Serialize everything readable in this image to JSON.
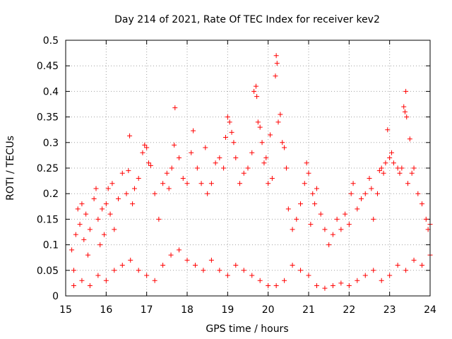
{
  "chart_data": {
    "type": "scatter",
    "title": "Day 214 of 2021, Rate Of TEC Index for receiver kev2",
    "xlabel": "GPS time / hours",
    "ylabel": "ROTI / TECUs",
    "xlim": [
      15,
      24
    ],
    "ylim": [
      0,
      0.5
    ],
    "xticks": [
      "15",
      "16",
      "17",
      "18",
      "19",
      "20",
      "21",
      "22",
      "23",
      "24"
    ],
    "yticks": [
      "0",
      "0.05",
      "0.1",
      "0.15",
      "0.2",
      "0.25",
      "0.3",
      "0.35",
      "0.4",
      "0.45",
      "0.5"
    ],
    "grid": true,
    "marker": "+",
    "marker_color": "#ff0000",
    "series": [
      {
        "name": "ROTI",
        "points": [
          [
            15.15,
            0.09
          ],
          [
            15.2,
            0.05
          ],
          [
            15.25,
            0.12
          ],
          [
            15.3,
            0.17
          ],
          [
            15.35,
            0.14
          ],
          [
            15.4,
            0.18
          ],
          [
            15.45,
            0.11
          ],
          [
            15.5,
            0.16
          ],
          [
            15.55,
            0.08
          ],
          [
            15.6,
            0.13
          ],
          [
            15.7,
            0.19
          ],
          [
            15.75,
            0.21
          ],
          [
            15.8,
            0.15
          ],
          [
            15.85,
            0.1
          ],
          [
            15.9,
            0.17
          ],
          [
            15.95,
            0.12
          ],
          [
            16.0,
            0.18
          ],
          [
            16.05,
            0.21
          ],
          [
            16.1,
            0.16
          ],
          [
            16.15,
            0.22
          ],
          [
            16.2,
            0.13
          ],
          [
            16.3,
            0.19
          ],
          [
            16.4,
            0.24
          ],
          [
            16.5,
            0.2
          ],
          [
            16.55,
            0.245
          ],
          [
            16.58,
            0.313
          ],
          [
            16.65,
            0.18
          ],
          [
            16.7,
            0.21
          ],
          [
            16.8,
            0.23
          ],
          [
            16.9,
            0.28
          ],
          [
            16.95,
            0.295
          ],
          [
            17.0,
            0.29
          ],
          [
            17.05,
            0.26
          ],
          [
            17.1,
            0.255
          ],
          [
            17.2,
            0.2
          ],
          [
            17.3,
            0.15
          ],
          [
            17.4,
            0.22
          ],
          [
            17.5,
            0.24
          ],
          [
            17.55,
            0.21
          ],
          [
            17.62,
            0.25
          ],
          [
            17.68,
            0.295
          ],
          [
            17.7,
            0.368
          ],
          [
            17.8,
            0.27
          ],
          [
            17.9,
            0.23
          ],
          [
            18.0,
            0.22
          ],
          [
            18.1,
            0.28
          ],
          [
            18.15,
            0.323
          ],
          [
            18.25,
            0.25
          ],
          [
            18.35,
            0.22
          ],
          [
            18.45,
            0.29
          ],
          [
            18.5,
            0.2
          ],
          [
            18.6,
            0.22
          ],
          [
            18.7,
            0.26
          ],
          [
            18.8,
            0.27
          ],
          [
            18.9,
            0.25
          ],
          [
            18.95,
            0.31
          ],
          [
            19.0,
            0.35
          ],
          [
            19.05,
            0.34
          ],
          [
            19.1,
            0.32
          ],
          [
            19.15,
            0.3
          ],
          [
            19.2,
            0.27
          ],
          [
            19.3,
            0.22
          ],
          [
            19.4,
            0.24
          ],
          [
            19.5,
            0.25
          ],
          [
            19.6,
            0.28
          ],
          [
            19.65,
            0.4
          ],
          [
            19.7,
            0.41
          ],
          [
            19.72,
            0.39
          ],
          [
            19.75,
            0.34
          ],
          [
            19.8,
            0.33
          ],
          [
            19.85,
            0.3
          ],
          [
            19.9,
            0.26
          ],
          [
            19.95,
            0.27
          ],
          [
            20.0,
            0.22
          ],
          [
            20.05,
            0.315
          ],
          [
            20.1,
            0.23
          ],
          [
            20.18,
            0.43
          ],
          [
            20.2,
            0.47
          ],
          [
            20.22,
            0.455
          ],
          [
            20.25,
            0.34
          ],
          [
            20.3,
            0.355
          ],
          [
            20.35,
            0.3
          ],
          [
            20.4,
            0.29
          ],
          [
            20.45,
            0.25
          ],
          [
            20.5,
            0.17
          ],
          [
            20.6,
            0.13
          ],
          [
            20.7,
            0.15
          ],
          [
            20.8,
            0.18
          ],
          [
            20.9,
            0.22
          ],
          [
            20.95,
            0.26
          ],
          [
            21.0,
            0.24
          ],
          [
            21.05,
            0.14
          ],
          [
            21.1,
            0.2
          ],
          [
            21.15,
            0.18
          ],
          [
            21.2,
            0.21
          ],
          [
            21.3,
            0.16
          ],
          [
            21.4,
            0.13
          ],
          [
            21.5,
            0.1
          ],
          [
            21.6,
            0.12
          ],
          [
            21.7,
            0.15
          ],
          [
            21.8,
            0.13
          ],
          [
            21.9,
            0.16
          ],
          [
            22.0,
            0.14
          ],
          [
            22.05,
            0.2
          ],
          [
            22.1,
            0.22
          ],
          [
            22.2,
            0.17
          ],
          [
            22.3,
            0.19
          ],
          [
            22.4,
            0.2
          ],
          [
            22.5,
            0.23
          ],
          [
            22.55,
            0.21
          ],
          [
            22.6,
            0.15
          ],
          [
            22.7,
            0.2
          ],
          [
            22.75,
            0.245
          ],
          [
            22.8,
            0.25
          ],
          [
            22.85,
            0.24
          ],
          [
            22.9,
            0.26
          ],
          [
            22.95,
            0.325
          ],
          [
            23.0,
            0.27
          ],
          [
            23.05,
            0.28
          ],
          [
            23.1,
            0.26
          ],
          [
            23.2,
            0.25
          ],
          [
            23.25,
            0.24
          ],
          [
            23.3,
            0.25
          ],
          [
            23.35,
            0.37
          ],
          [
            23.38,
            0.36
          ],
          [
            23.4,
            0.4
          ],
          [
            23.42,
            0.35
          ],
          [
            23.45,
            0.22
          ],
          [
            23.5,
            0.307
          ],
          [
            23.55,
            0.24
          ],
          [
            23.6,
            0.25
          ],
          [
            23.7,
            0.2
          ],
          [
            23.8,
            0.18
          ],
          [
            23.9,
            0.15
          ],
          [
            23.95,
            0.13
          ],
          [
            24.0,
            0.14
          ],
          [
            15.2,
            0.02
          ],
          [
            15.4,
            0.03
          ],
          [
            15.6,
            0.02
          ],
          [
            15.8,
            0.04
          ],
          [
            16.0,
            0.03
          ],
          [
            16.2,
            0.05
          ],
          [
            16.4,
            0.06
          ],
          [
            16.6,
            0.07
          ],
          [
            16.8,
            0.05
          ],
          [
            17.0,
            0.04
          ],
          [
            17.2,
            0.03
          ],
          [
            17.4,
            0.06
          ],
          [
            17.6,
            0.08
          ],
          [
            17.8,
            0.09
          ],
          [
            18.0,
            0.07
          ],
          [
            18.2,
            0.06
          ],
          [
            18.4,
            0.05
          ],
          [
            18.6,
            0.07
          ],
          [
            18.8,
            0.05
          ],
          [
            19.0,
            0.04
          ],
          [
            19.2,
            0.06
          ],
          [
            19.4,
            0.05
          ],
          [
            19.6,
            0.04
          ],
          [
            19.8,
            0.03
          ],
          [
            20.0,
            0.02
          ],
          [
            20.2,
            0.02
          ],
          [
            20.4,
            0.03
          ],
          [
            20.6,
            0.06
          ],
          [
            20.8,
            0.05
          ],
          [
            21.0,
            0.04
          ],
          [
            21.2,
            0.02
          ],
          [
            21.4,
            0.015
          ],
          [
            21.6,
            0.02
          ],
          [
            21.8,
            0.025
          ],
          [
            22.0,
            0.02
          ],
          [
            22.2,
            0.03
          ],
          [
            22.4,
            0.04
          ],
          [
            22.6,
            0.05
          ],
          [
            22.8,
            0.03
          ],
          [
            23.0,
            0.04
          ],
          [
            23.2,
            0.06
          ],
          [
            23.4,
            0.05
          ],
          [
            23.6,
            0.07
          ],
          [
            23.8,
            0.06
          ],
          [
            24.0,
            0.08
          ]
        ]
      }
    ]
  }
}
